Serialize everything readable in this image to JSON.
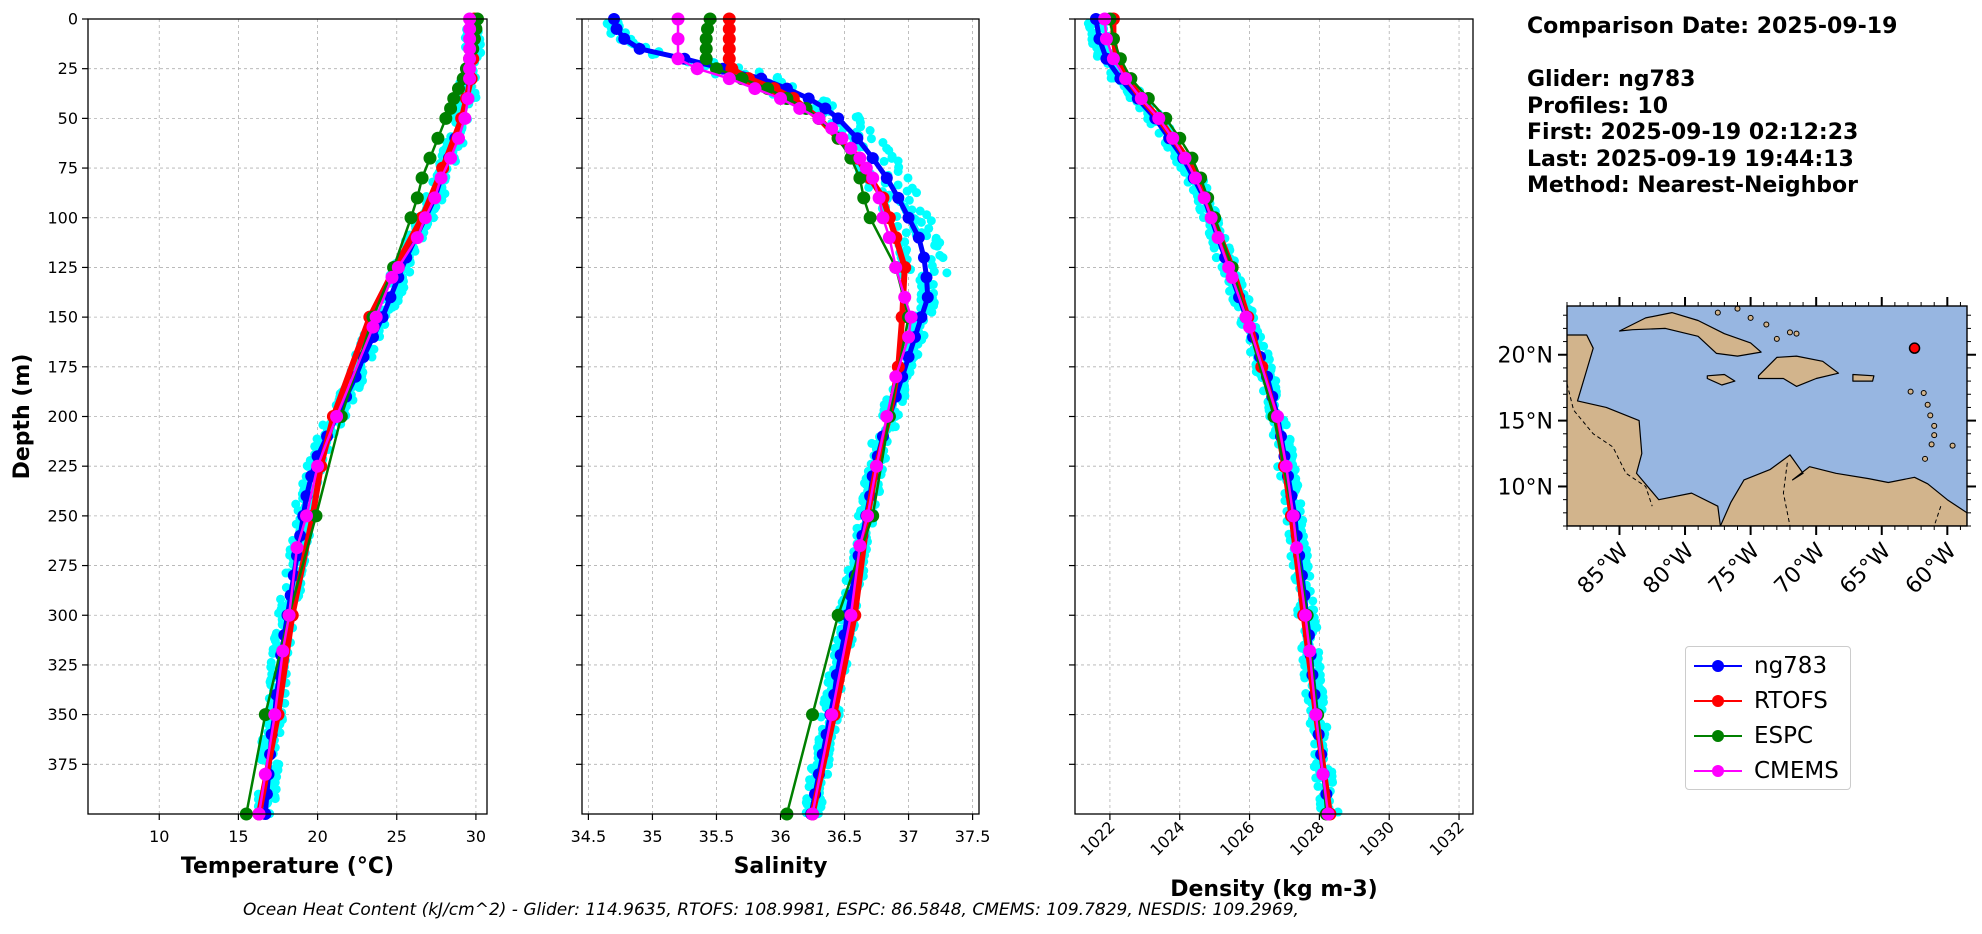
{
  "info": {
    "comparison_date": "Comparison Date: 2025-09-19",
    "glider": "Glider: ng783",
    "profiles": "Profiles: 10",
    "first": "First: 2025-09-19 02:12:23",
    "last": "Last: 2025-09-19 19:44:13",
    "method": "Method: Nearest-Neighbor"
  },
  "ohc_text": "Ocean Heat Content (kJ/cm^2) - Glider: 114.9635,  RTOFS: 108.9981,  ESPC: 86.5848,  CMEMS: 109.7829,  NESDIS: 109.2969,",
  "colors": {
    "glider": "#0000ff",
    "glider_raw": "#00ffff",
    "rtofs": "#ff0000",
    "espc": "#008000",
    "cmems": "#ff00ff",
    "ocean": "#97b6e1",
    "land": "#d2b48c"
  },
  "legend": [
    {
      "label": "ng783",
      "color": "#0000ff"
    },
    {
      "label": "RTOFS",
      "color": "#ff0000"
    },
    {
      "label": "ESPC",
      "color": "#008000"
    },
    {
      "label": "CMEMS",
      "color": "#ff00ff"
    }
  ],
  "map": {
    "xticks": [
      -85,
      -80,
      -75,
      -70,
      -65,
      -60
    ],
    "xtick_labels": [
      "85°W",
      "80°W",
      "75°W",
      "70°W",
      "65°W",
      "60°W"
    ],
    "yticks": [
      10,
      15,
      20
    ],
    "ytick_labels": [
      "10°N",
      "15°N",
      "20°N"
    ],
    "lon_range": [
      -89,
      -58.5
    ],
    "lat_range": [
      7,
      23.7
    ],
    "glider_position": [
      -62.5,
      20.5
    ]
  },
  "chart_data": [
    {
      "type": "line",
      "xlabel": "Temperature (°C)",
      "ylabel": "Depth (m)",
      "xlim": [
        5.5,
        30.7
      ],
      "ylim": [
        400,
        0
      ],
      "xticks": [
        10,
        15,
        20,
        25,
        30
      ],
      "yticks": [
        0,
        25,
        50,
        75,
        100,
        125,
        150,
        175,
        200,
        225,
        250,
        275,
        300,
        325,
        350,
        375
      ],
      "grid": true,
      "series": [
        {
          "name": "ng783",
          "depth": [
            0,
            10,
            20,
            30,
            40,
            50,
            60,
            70,
            80,
            90,
            100,
            110,
            120,
            130,
            140,
            150,
            160,
            170,
            180,
            190,
            200,
            210,
            220,
            230,
            240,
            250,
            260,
            270,
            280,
            290,
            300,
            310,
            320,
            330,
            340,
            350,
            360,
            370,
            380,
            390,
            400
          ],
          "values": [
            29.8,
            29.8,
            29.7,
            29.6,
            29.4,
            29.1,
            28.7,
            28.3,
            27.8,
            27.4,
            26.8,
            26.2,
            25.6,
            25.1,
            24.6,
            24.1,
            23.5,
            22.9,
            22.4,
            21.8,
            21.2,
            20.6,
            20.0,
            19.6,
            19.3,
            19.1,
            18.9,
            18.7,
            18.5,
            18.3,
            18.1,
            17.9,
            17.7,
            17.6,
            17.4,
            17.3,
            17.1,
            17.0,
            16.9,
            16.8,
            16.7
          ]
        },
        {
          "name": "RTOFS",
          "depth": [
            0,
            10,
            20,
            30,
            40,
            50,
            75,
            100,
            125,
            150,
            200,
            225,
            250,
            300,
            350,
            400
          ],
          "values": [
            29.9,
            29.9,
            29.8,
            29.7,
            29.4,
            29.1,
            27.9,
            26.6,
            24.9,
            23.3,
            21.0,
            20.2,
            19.7,
            18.4,
            17.5,
            16.3
          ]
        },
        {
          "name": "ESPC",
          "depth": [
            0,
            5,
            10,
            15,
            20,
            25,
            30,
            35,
            40,
            45,
            50,
            60,
            70,
            80,
            90,
            100,
            125,
            150,
            200,
            250,
            300,
            350,
            400
          ],
          "values": [
            30.1,
            30.0,
            29.9,
            29.8,
            29.6,
            29.4,
            29.2,
            28.9,
            28.6,
            28.4,
            28.1,
            27.6,
            27.1,
            26.6,
            26.3,
            25.9,
            24.8,
            23.5,
            21.5,
            19.9,
            18.2,
            16.7,
            15.5
          ]
        },
        {
          "name": "CMEMS",
          "depth": [
            0,
            5,
            10,
            15,
            20,
            25,
            30,
            40,
            50,
            60,
            70,
            80,
            90,
            100,
            110,
            125,
            130,
            150,
            155,
            200,
            225,
            250,
            266,
            300,
            318,
            350,
            380,
            400
          ],
          "values": [
            29.6,
            29.6,
            29.6,
            29.6,
            29.6,
            29.6,
            29.6,
            29.5,
            29.3,
            28.9,
            28.4,
            27.8,
            27.4,
            26.8,
            26.3,
            25.1,
            24.7,
            23.7,
            23.5,
            21.2,
            20.0,
            19.3,
            18.7,
            18.2,
            17.8,
            17.3,
            16.7,
            16.3
          ]
        }
      ]
    },
    {
      "type": "line",
      "xlabel": "Salinity",
      "ylabel": "",
      "xlim": [
        34.45,
        37.55
      ],
      "ylim": [
        400,
        0
      ],
      "xticks": [
        34.5,
        35.0,
        35.5,
        36.0,
        36.5,
        37.0,
        37.5
      ],
      "yticks": [
        0,
        25,
        50,
        75,
        100,
        125,
        150,
        175,
        200,
        225,
        250,
        275,
        300,
        325,
        350,
        375
      ],
      "grid": true,
      "series": [
        {
          "name": "ng783",
          "depth": [
            0,
            5,
            10,
            15,
            20,
            25,
            30,
            35,
            40,
            45,
            50,
            60,
            70,
            80,
            90,
            100,
            110,
            120,
            130,
            140,
            150,
            160,
            170,
            180,
            190,
            200,
            210,
            220,
            230,
            240,
            250,
            260,
            270,
            280,
            290,
            300,
            310,
            320,
            330,
            340,
            350,
            360,
            370,
            380,
            390,
            400
          ],
          "values": [
            34.7,
            34.72,
            34.78,
            34.9,
            35.25,
            35.55,
            35.85,
            36.05,
            36.22,
            36.35,
            36.45,
            36.6,
            36.72,
            36.83,
            36.92,
            37.0,
            37.08,
            37.12,
            37.14,
            37.15,
            37.1,
            37.05,
            37.0,
            36.95,
            36.9,
            36.85,
            36.8,
            36.76,
            36.72,
            36.7,
            36.67,
            36.64,
            36.61,
            36.58,
            36.55,
            36.52,
            36.5,
            36.47,
            36.44,
            36.42,
            36.39,
            36.36,
            36.33,
            36.3,
            36.27,
            36.24
          ]
        },
        {
          "name": "RTOFS",
          "depth": [
            0,
            5,
            10,
            15,
            20,
            25,
            30,
            35,
            40,
            50,
            60,
            70,
            80,
            90,
            100,
            110,
            125,
            150,
            175,
            200,
            225,
            250,
            300,
            350,
            400
          ],
          "values": [
            35.6,
            35.6,
            35.6,
            35.6,
            35.6,
            35.62,
            35.75,
            35.95,
            36.1,
            36.3,
            36.45,
            36.6,
            36.7,
            36.8,
            36.85,
            36.9,
            36.97,
            36.95,
            36.92,
            36.85,
            36.75,
            36.68,
            36.58,
            36.42,
            36.25
          ]
        },
        {
          "name": "ESPC",
          "depth": [
            0,
            5,
            10,
            15,
            20,
            25,
            30,
            35,
            40,
            45,
            50,
            60,
            70,
            80,
            90,
            100,
            125,
            150,
            200,
            250,
            300,
            350,
            400
          ],
          "values": [
            35.45,
            35.43,
            35.42,
            35.42,
            35.42,
            35.5,
            35.7,
            35.9,
            36.05,
            36.2,
            36.3,
            36.45,
            36.55,
            36.62,
            36.65,
            36.7,
            36.9,
            37.0,
            36.85,
            36.72,
            36.45,
            36.25,
            36.05
          ]
        },
        {
          "name": "CMEMS",
          "depth": [
            0,
            10,
            20,
            25,
            30,
            35,
            40,
            45,
            50,
            55,
            60,
            65,
            70,
            75,
            80,
            90,
            100,
            110,
            125,
            140,
            150,
            160,
            180,
            200,
            225,
            250,
            265,
            300,
            350,
            400
          ],
          "values": [
            35.2,
            35.2,
            35.2,
            35.35,
            35.6,
            35.8,
            36.0,
            36.15,
            36.3,
            36.4,
            36.48,
            36.55,
            36.62,
            36.67,
            36.72,
            36.77,
            36.8,
            36.85,
            36.9,
            36.97,
            37.02,
            37.0,
            36.9,
            36.83,
            36.75,
            36.68,
            36.62,
            36.55,
            36.4,
            36.25
          ]
        }
      ]
    },
    {
      "type": "line",
      "xlabel": "Density (kg m-3)",
      "ylabel": "",
      "xlim": [
        1021.0,
        1032.4
      ],
      "ylim": [
        400,
        0
      ],
      "xticks": [
        1022,
        1024,
        1026,
        1028,
        1030,
        1032
      ],
      "yticks": [
        0,
        25,
        50,
        75,
        100,
        125,
        150,
        175,
        200,
        225,
        250,
        275,
        300,
        325,
        350,
        375
      ],
      "grid": true,
      "series": [
        {
          "name": "ng783",
          "depth": [
            0,
            10,
            20,
            30,
            40,
            50,
            60,
            70,
            80,
            90,
            100,
            110,
            120,
            130,
            140,
            150,
            160,
            170,
            180,
            190,
            200,
            210,
            220,
            230,
            240,
            250,
            260,
            270,
            280,
            290,
            300,
            310,
            320,
            330,
            340,
            350,
            360,
            370,
            380,
            390,
            400
          ],
          "values": [
            1021.6,
            1021.7,
            1021.9,
            1022.3,
            1022.8,
            1023.3,
            1023.7,
            1024.1,
            1024.4,
            1024.7,
            1024.9,
            1025.1,
            1025.3,
            1025.5,
            1025.7,
            1025.9,
            1026.1,
            1026.3,
            1026.5,
            1026.65,
            1026.8,
            1026.9,
            1027.0,
            1027.1,
            1027.2,
            1027.3,
            1027.35,
            1027.42,
            1027.5,
            1027.57,
            1027.63,
            1027.7,
            1027.75,
            1027.8,
            1027.86,
            1027.92,
            1027.98,
            1028.05,
            1028.12,
            1028.2,
            1028.3
          ]
        },
        {
          "name": "RTOFS",
          "depth": [
            0,
            10,
            20,
            30,
            40,
            50,
            60,
            70,
            80,
            90,
            100,
            125,
            150,
            175,
            200,
            225,
            250,
            300,
            350,
            400
          ],
          "values": [
            1022.1,
            1022.1,
            1022.2,
            1022.5,
            1022.9,
            1023.4,
            1023.8,
            1024.2,
            1024.5,
            1024.75,
            1024.95,
            1025.5,
            1025.95,
            1026.35,
            1026.75,
            1027.0,
            1027.2,
            1027.55,
            1027.9,
            1028.3
          ]
        },
        {
          "name": "ESPC",
          "depth": [
            0,
            10,
            20,
            30,
            40,
            50,
            60,
            70,
            80,
            90,
            100,
            125,
            150,
            200,
            250,
            300,
            350,
            400
          ],
          "values": [
            1022.0,
            1022.1,
            1022.3,
            1022.6,
            1023.1,
            1023.6,
            1024.0,
            1024.35,
            1024.6,
            1024.8,
            1025.0,
            1025.5,
            1025.9,
            1026.7,
            1027.25,
            1027.65,
            1027.95,
            1028.2
          ]
        },
        {
          "name": "CMEMS",
          "depth": [
            0,
            10,
            20,
            30,
            40,
            50,
            60,
            70,
            80,
            90,
            100,
            110,
            125,
            130,
            150,
            155,
            200,
            225,
            250,
            266,
            300,
            318,
            350,
            380,
            400
          ],
          "values": [
            1021.85,
            1021.9,
            1022.1,
            1022.45,
            1022.9,
            1023.4,
            1023.8,
            1024.15,
            1024.45,
            1024.7,
            1024.9,
            1025.1,
            1025.4,
            1025.5,
            1025.9,
            1026.0,
            1026.8,
            1027.05,
            1027.25,
            1027.35,
            1027.6,
            1027.72,
            1027.9,
            1028.1,
            1028.25
          ]
        }
      ]
    }
  ]
}
